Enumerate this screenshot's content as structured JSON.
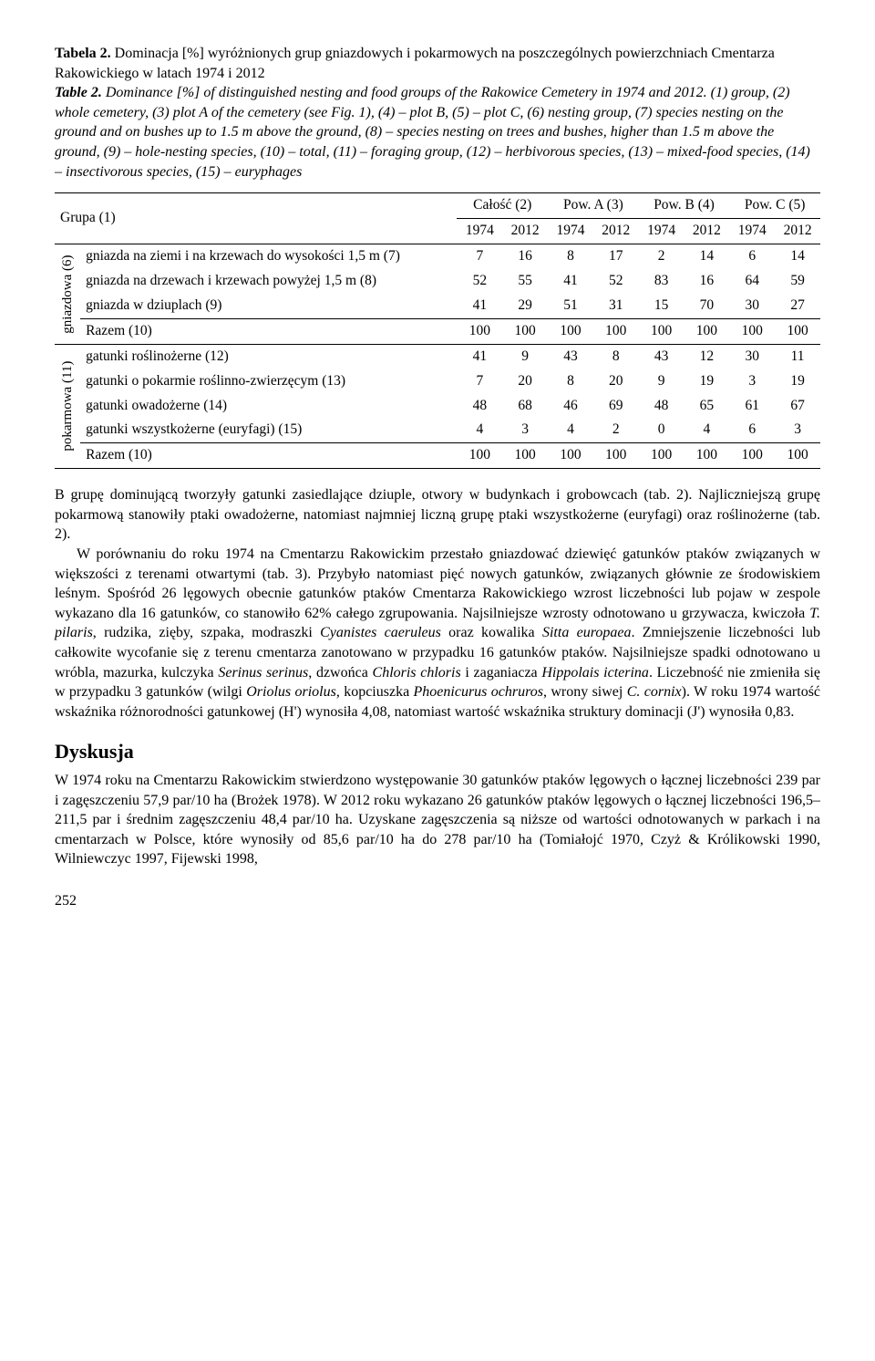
{
  "caption": {
    "table_label_pl": "Tabela 2.",
    "title_pl": " Dominacja [%] wyróżnionych grup gniazdowych i pokarmowych na poszczególnych powierzchniach Cmentarza Rakowickiego w latach 1974 i 2012",
    "table_label_en": "Table 2.",
    "title_en": " Dominance [%] of distinguished nesting and food groups of the Rakowice Cemetery in 1974 and 2012. (1) group, (2) whole cemetery, (3) plot A of the cemetery (see Fig. 1), (4) – plot B, (5) – plot C, (6) nesting group, (7) species nesting on the ground and on bushes up to 1.5 m above the ground, (8) – species nesting on trees and bushes, higher than 1.5 m above the ground, (9) – hole-nesting species, (10) – total, (11) – foraging group, (12) – herbivorous species, (13) – mixed-food species, (14) – insectivorous species, (15) – euryphages"
  },
  "table": {
    "group_header": "Grupa (1)",
    "col_headers": [
      "Całość (2)",
      "Pow. A (3)",
      "Pow. B (4)",
      "Pow. C (5)"
    ],
    "years": [
      "1974",
      "2012"
    ],
    "vert1": "gniazdowa (6)",
    "vert2": "pokarmowa (11)",
    "rows_nesting": [
      {
        "label": "gniazda na ziemi i na krzewach do wysokości 1,5 m (7)",
        "vals": [
          7,
          16,
          8,
          17,
          2,
          14,
          6,
          14
        ]
      },
      {
        "label": "gniazda na drzewach i krzewach powyżej 1,5 m (8)",
        "vals": [
          52,
          55,
          41,
          52,
          83,
          16,
          64,
          59
        ]
      },
      {
        "label": "gniazda w dziuplach (9)",
        "vals": [
          41,
          29,
          51,
          31,
          15,
          70,
          30,
          27
        ]
      },
      {
        "label": "Razem (10)",
        "vals": [
          100,
          100,
          100,
          100,
          100,
          100,
          100,
          100
        ]
      }
    ],
    "rows_food": [
      {
        "label": "gatunki roślinożerne (12)",
        "vals": [
          41,
          9,
          43,
          8,
          43,
          12,
          30,
          11
        ]
      },
      {
        "label": "gatunki o pokarmie roślinno-zwierzęcym (13)",
        "vals": [
          7,
          20,
          8,
          20,
          9,
          19,
          3,
          19
        ]
      },
      {
        "label": "gatunki owadożerne (14)",
        "vals": [
          48,
          68,
          46,
          69,
          48,
          65,
          61,
          67
        ]
      },
      {
        "label": "gatunki wszystkożerne (euryfagi) (15)",
        "vals": [
          4,
          3,
          4,
          2,
          0,
          4,
          6,
          3
        ]
      },
      {
        "label": "Razem (10)",
        "vals": [
          100,
          100,
          100,
          100,
          100,
          100,
          100,
          100
        ]
      }
    ]
  },
  "body": {
    "p1": "B grupę dominującą tworzyły gatunki zasiedlające dziuple, otwory w budynkach i grobowcach (tab. 2). Najliczniejszą grupę pokarmową stanowiły ptaki owadożerne, natomiast najmniej liczną grupę ptaki wszystkożerne (euryfagi) oraz roślinożerne (tab. 2).",
    "p2a": "W porównaniu do roku 1974 na Cmentarzu Rakowickim przestało gniazdować dziewięć gatunków ptaków związanych w większości z terenami otwartymi (tab. 3). Przybyło natomiast pięć nowych gatunków, związanych głównie ze środowiskiem leśnym. Spośród 26 lęgowych obecnie gatunków ptaków Cmentarza Rakowickiego wzrost liczebności lub pojaw w zespole wykazano dla 16 gatunków, co stanowiło 62% całego zgrupowania. Najsilniejsze wzrosty odnotowano u grzywacza, kwiczoła ",
    "p2i1": "T. pilaris",
    "p2b": ", rudzika, zięby, szpaka, modraszki ",
    "p2i2": "Cyanistes caeruleus",
    "p2c": " oraz kowalika ",
    "p2i3": "Sitta europaea",
    "p2d": ". Zmniejszenie liczebności lub całkowite wycofanie się z terenu cmentarza zanotowano w przypadku 16 gatunków ptaków. Najsilniejsze spadki odnotowano u wróbla, mazurka, kulczyka ",
    "p2i4": "Serinus serinus",
    "p2e": ", dzwońca ",
    "p2i5": "Chloris chloris",
    "p2f": " i zaganiacza ",
    "p2i6": "Hippolais icterina",
    "p2g": ". Liczebność nie zmieniła się w przypadku 3 gatunków (wilgi ",
    "p2i7": "Oriolus oriolus",
    "p2h": ", kopciuszka ",
    "p2i8": "Phoenicurus ochruros",
    "p2j": ", wrony siwej ",
    "p2i9": "C. cornix",
    "p2k": "). W roku 1974 wartość wskaźnika różnorodności gatunkowej (H') wynosiła 4,08, natomiast wartość wskaźnika struktury dominacji (J') wynosiła 0,83."
  },
  "discussion": {
    "heading": "Dyskusja",
    "p1": "W 1974 roku na Cmentarzu Rakowickim stwierdzono występowanie 30 gatunków ptaków lęgowych o łącznej liczebności 239 par i zagęszczeniu 57,9 par/10 ha (Brożek 1978). W 2012 roku wykazano 26 gatunków ptaków lęgowych o łącznej liczebności 196,5–211,5 par i średnim zagęszczeniu 48,4 par/10 ha. Uzyskane zagęszczenia są niższe od wartości odnotowanych w parkach i na cmentarzach w Polsce, które wynosiły od 85,6 par/10 ha do 278 par/10 ha (Tomiałojć 1970, Czyż & Królikowski 1990, Wilniewczyc 1997, Fijewski 1998,"
  },
  "pagenum": "252"
}
